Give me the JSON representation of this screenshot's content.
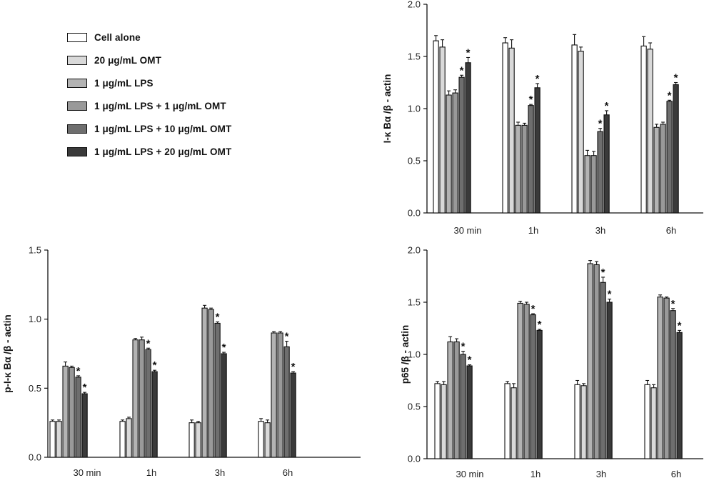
{
  "legend": {
    "items": [
      {
        "label": "Cell alone",
        "color": "#ffffff"
      },
      {
        "label": "20 μg/mL OMT",
        "color": "#d9d9d9"
      },
      {
        "label": "1 μg/mL LPS",
        "color": "#b3b3b3"
      },
      {
        "label": "1 μg/mL LPS + 1 μg/mL OMT",
        "color": "#999999"
      },
      {
        "label": "1 μg/mL LPS + 10 μg/mL OMT",
        "color": "#6e6e6e"
      },
      {
        "label": "1 μg/mL LPS + 20 μg/mL OMT",
        "color": "#3a3a3a"
      }
    ]
  },
  "chart_data": [
    {
      "type": "bar",
      "ylabel": "I-κ Bα /β - actin",
      "ylim": [
        0,
        2.0
      ],
      "yticks": [
        "0.0",
        "0.5",
        "1.0",
        "1.5",
        "2.0"
      ],
      "categories": [
        "30 min",
        "1h",
        "3h",
        "6h"
      ],
      "series": [
        {
          "name": "Cell alone",
          "values": [
            1.65,
            1.63,
            1.61,
            1.6
          ],
          "errors": [
            0.05,
            0.05,
            0.1,
            0.09
          ]
        },
        {
          "name": "20 μg/mL OMT",
          "values": [
            1.59,
            1.58,
            1.55,
            1.57
          ],
          "errors": [
            0.07,
            0.08,
            0.04,
            0.06
          ]
        },
        {
          "name": "1 μg/mL LPS",
          "values": [
            1.13,
            0.84,
            0.55,
            0.82
          ],
          "errors": [
            0.04,
            0.03,
            0.05,
            0.03
          ]
        },
        {
          "name": "1 μg/mL LPS + 1 μg/mL OMT",
          "values": [
            1.15,
            0.84,
            0.55,
            0.85
          ],
          "errors": [
            0.03,
            0.02,
            0.04,
            0.02
          ]
        },
        {
          "name": "1 μg/mL LPS + 10 μg/mL OMT",
          "values": [
            1.3,
            1.03,
            0.78,
            1.07
          ],
          "errors": [
            0.02,
            0.01,
            0.03,
            0.01
          ]
        },
        {
          "name": "1 μg/mL LPS + 20 μg/mL OMT",
          "values": [
            1.44,
            1.2,
            0.94,
            1.23
          ],
          "errors": [
            0.05,
            0.04,
            0.04,
            0.02
          ]
        }
      ],
      "significance": [
        [
          4,
          5
        ],
        [
          4,
          5
        ],
        [
          4,
          5
        ],
        [
          4,
          5
        ]
      ]
    },
    {
      "type": "bar",
      "ylabel": "p-I-κ Bα /β - actin",
      "ylim": [
        0,
        1.5
      ],
      "yticks": [
        "0.0",
        "0.5",
        "1.0",
        "1.5"
      ],
      "categories": [
        "30 min",
        "1h",
        "3h",
        "6h"
      ],
      "series": [
        {
          "name": "Cell alone",
          "values": [
            0.26,
            0.26,
            0.25,
            0.26
          ],
          "errors": [
            0.01,
            0.01,
            0.02,
            0.02
          ]
        },
        {
          "name": "20 μg/mL OMT",
          "values": [
            0.26,
            0.28,
            0.25,
            0.25
          ],
          "errors": [
            0.01,
            0.01,
            0.01,
            0.02
          ]
        },
        {
          "name": "1 μg/mL LPS",
          "values": [
            0.66,
            0.85,
            1.08,
            0.9
          ],
          "errors": [
            0.03,
            0.01,
            0.02,
            0.01
          ]
        },
        {
          "name": "1 μg/mL LPS + 1 μg/mL OMT",
          "values": [
            0.65,
            0.85,
            1.07,
            0.9
          ],
          "errors": [
            0.01,
            0.02,
            0.01,
            0.01
          ]
        },
        {
          "name": "1 μg/mL LPS + 10 μg/mL OMT",
          "values": [
            0.58,
            0.78,
            0.97,
            0.8
          ],
          "errors": [
            0.01,
            0.01,
            0.01,
            0.04
          ]
        },
        {
          "name": "1 μg/mL LPS + 20 μg/mL OMT",
          "values": [
            0.46,
            0.62,
            0.75,
            0.61
          ],
          "errors": [
            0.01,
            0.01,
            0.01,
            0.01
          ]
        }
      ],
      "significance": [
        [
          4,
          5
        ],
        [
          4,
          5
        ],
        [
          4,
          5
        ],
        [
          4,
          5
        ]
      ]
    },
    {
      "type": "bar",
      "ylabel": "p65 /β - actin",
      "ylim": [
        0,
        2.0
      ],
      "yticks": [
        "0.0",
        "0.5",
        "1.0",
        "1.5",
        "2.0"
      ],
      "categories": [
        "30 min",
        "1h",
        "3h",
        "6h"
      ],
      "series": [
        {
          "name": "Cell alone",
          "values": [
            0.72,
            0.72,
            0.71,
            0.71
          ],
          "errors": [
            0.02,
            0.02,
            0.04,
            0.04
          ]
        },
        {
          "name": "20 μg/mL OMT",
          "values": [
            0.71,
            0.68,
            0.7,
            0.68
          ],
          "errors": [
            0.03,
            0.04,
            0.02,
            0.03
          ]
        },
        {
          "name": "1 μg/mL LPS",
          "values": [
            1.12,
            1.49,
            1.87,
            1.55
          ],
          "errors": [
            0.05,
            0.02,
            0.03,
            0.02
          ]
        },
        {
          "name": "1 μg/mL LPS + 1 μg/mL OMT",
          "values": [
            1.12,
            1.48,
            1.86,
            1.54
          ],
          "errors": [
            0.03,
            0.02,
            0.03,
            0.01
          ]
        },
        {
          "name": "1 μg/mL LPS + 10 μg/mL OMT",
          "values": [
            1.0,
            1.38,
            1.69,
            1.42
          ],
          "errors": [
            0.03,
            0.01,
            0.05,
            0.02
          ]
        },
        {
          "name": "1 μg/mL LPS + 20 μg/mL OMT",
          "values": [
            0.89,
            1.23,
            1.5,
            1.21
          ],
          "errors": [
            0.01,
            0.01,
            0.03,
            0.02
          ]
        }
      ],
      "significance": [
        [
          4,
          5
        ],
        [
          4,
          5
        ],
        [
          4,
          5
        ],
        [
          4,
          5
        ]
      ]
    }
  ],
  "annotations": {
    "significance_marker": "*"
  }
}
